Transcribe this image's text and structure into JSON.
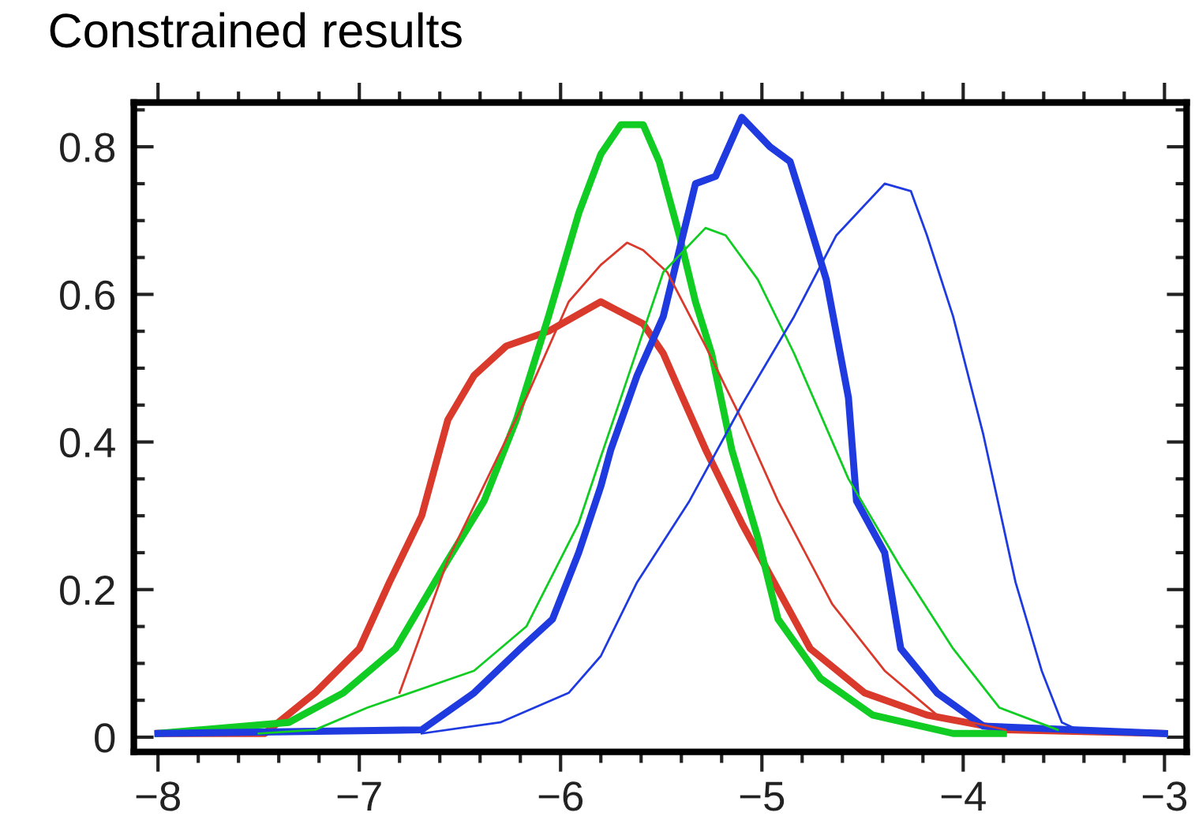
{
  "chart_data": {
    "type": "line",
    "title": "Constrained results",
    "xlim": [
      -8.12,
      -2.89
    ],
    "ylim": [
      -0.02,
      0.86
    ],
    "xticks": [
      {
        "value": -8,
        "label": "−8"
      },
      {
        "value": -7.8,
        "label": null
      },
      {
        "value": -7.6,
        "label": null
      },
      {
        "value": -7.4,
        "label": null
      },
      {
        "value": -7.2,
        "label": null
      },
      {
        "value": -7,
        "label": "−7"
      },
      {
        "value": -6.8,
        "label": null
      },
      {
        "value": -6.6,
        "label": null
      },
      {
        "value": -6.4,
        "label": null
      },
      {
        "value": -6.2,
        "label": null
      },
      {
        "value": -6,
        "label": "−6"
      },
      {
        "value": -5.8,
        "label": null
      },
      {
        "value": -5.6,
        "label": null
      },
      {
        "value": -5.4,
        "label": null
      },
      {
        "value": -5.2,
        "label": null
      },
      {
        "value": -5,
        "label": "−5"
      },
      {
        "value": -4.8,
        "label": null
      },
      {
        "value": -4.6,
        "label": null
      },
      {
        "value": -4.4,
        "label": null
      },
      {
        "value": -4.2,
        "label": null
      },
      {
        "value": -4,
        "label": "−4"
      },
      {
        "value": -3.8,
        "label": null
      },
      {
        "value": -3.6,
        "label": null
      },
      {
        "value": -3.4,
        "label": null
      },
      {
        "value": -3.2,
        "label": null
      },
      {
        "value": -3,
        "label": "−3"
      }
    ],
    "yticks": [
      0,
      {
        "value": 0.05,
        "label": null
      },
      {
        "value": 0.1,
        "label": null
      },
      {
        "value": 0.15,
        "label": null
      },
      0.2,
      {
        "value": 0.25,
        "label": null
      },
      {
        "value": 0.3,
        "label": null
      },
      {
        "value": 0.35,
        "label": null
      },
      0.4,
      {
        "value": 0.45,
        "label": null
      },
      {
        "value": 0.5,
        "label": null
      },
      {
        "value": 0.55,
        "label": null
      },
      0.6,
      {
        "value": 0.65,
        "label": null
      },
      {
        "value": 0.7,
        "label": null
      },
      {
        "value": 0.75,
        "label": null
      },
      0.8,
      {
        "value": 0.85,
        "label": null
      }
    ],
    "grid": false,
    "legend": false,
    "marker": "none",
    "line_style": "solid",
    "series": [
      {
        "color": "#d93a2b",
        "x": [
          -8,
          -7.47,
          -7.22,
          -7.0,
          -6.85,
          -6.69,
          -6.56,
          -6.43,
          -6.27,
          -6.06,
          -5.8,
          -5.73,
          -5.59,
          -5.49,
          -5.41,
          -5.28,
          -5.1,
          -4.94,
          -4.76,
          -4.49,
          -4.18,
          -3.79,
          -3.0
        ],
        "values": [
          0.005,
          0.005,
          0.06,
          0.12,
          0.21,
          0.3,
          0.43,
          0.49,
          0.53,
          0.55,
          0.59,
          0.58,
          0.56,
          0.52,
          0.47,
          0.39,
          0.29,
          0.21,
          0.12,
          0.06,
          0.03,
          0.01,
          0.005
        ]
      },
      {
        "color": "#11cc22",
        "x": [
          -8,
          -7.35,
          -7.08,
          -6.82,
          -6.56,
          -6.38,
          -6.22,
          -6.06,
          -5.91,
          -5.8,
          -5.7,
          -5.59,
          -5.51,
          -5.41,
          -5.33,
          -5.25,
          -5.15,
          -5.02,
          -4.92,
          -4.71,
          -4.45,
          -4.05,
          -3.8
        ],
        "values": [
          0.005,
          0.02,
          0.06,
          0.12,
          0.24,
          0.32,
          0.43,
          0.57,
          0.71,
          0.79,
          0.83,
          0.83,
          0.78,
          0.68,
          0.59,
          0.52,
          0.39,
          0.27,
          0.16,
          0.08,
          0.03,
          0.005,
          0.005
        ]
      },
      {
        "color": "#1f3be0",
        "x": [
          -8,
          -6.69,
          -6.43,
          -6.2,
          -6.04,
          -5.91,
          -5.8,
          -5.75,
          -5.62,
          -5.49,
          -5.33,
          -5.23,
          -5.1,
          -4.96,
          -4.86,
          -4.78,
          -4.68,
          -4.57,
          -4.53,
          -4.39,
          -4.31,
          -4.13,
          -3.9,
          -3.0
        ],
        "values": [
          0.005,
          0.01,
          0.06,
          0.12,
          0.16,
          0.25,
          0.34,
          0.39,
          0.49,
          0.57,
          0.75,
          0.76,
          0.84,
          0.8,
          0.78,
          0.71,
          0.62,
          0.46,
          0.32,
          0.25,
          0.12,
          0.06,
          0.015,
          0.005
        ]
      },
      {
        "color": "#d93a2b",
        "x": [
          -6.8,
          -6.56,
          -6.17,
          -5.96,
          -5.8,
          -5.67,
          -5.59,
          -5.47,
          -5.28,
          -5.1,
          -4.92,
          -4.65,
          -4.39,
          -4.13,
          -3.79
        ],
        "values": [
          0.06,
          0.24,
          0.46,
          0.59,
          0.64,
          0.67,
          0.66,
          0.63,
          0.53,
          0.43,
          0.32,
          0.18,
          0.09,
          0.03,
          0.01
        ]
      },
      {
        "color": "#11cc22",
        "x": [
          -7.5,
          -7.22,
          -6.96,
          -6.43,
          -6.17,
          -5.91,
          -5.8,
          -5.7,
          -5.49,
          -5.28,
          -5.18,
          -5.02,
          -4.84,
          -4.57,
          -4.31,
          -4.05,
          -3.82,
          -3.53
        ],
        "values": [
          0.005,
          0.01,
          0.04,
          0.09,
          0.15,
          0.29,
          0.38,
          0.46,
          0.63,
          0.69,
          0.68,
          0.62,
          0.52,
          0.35,
          0.23,
          0.12,
          0.04,
          0.01
        ]
      },
      {
        "color": "#1f3be0",
        "x": [
          -6.69,
          -6.3,
          -5.96,
          -5.8,
          -5.62,
          -5.36,
          -5.1,
          -4.84,
          -4.63,
          -4.39,
          -4.26,
          -4.18,
          -4.05,
          -3.9,
          -3.74,
          -3.61,
          -3.51,
          -3.43
        ],
        "values": [
          0.005,
          0.02,
          0.06,
          0.11,
          0.21,
          0.32,
          0.45,
          0.57,
          0.68,
          0.75,
          0.74,
          0.68,
          0.57,
          0.41,
          0.21,
          0.09,
          0.02,
          0.01
        ]
      }
    ]
  }
}
